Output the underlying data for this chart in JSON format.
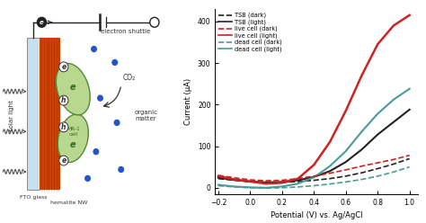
{
  "fig_width": 4.74,
  "fig_height": 2.48,
  "dpi": 100,
  "right_plot": {
    "xlabel": "Potential (V) vs. Ag/AgCl",
    "ylabel": "Current (μA)",
    "xlim": [
      -0.22,
      1.05
    ],
    "ylim": [
      -15,
      430
    ],
    "yticks": [
      0,
      100,
      200,
      300,
      400
    ],
    "xticks": [
      -0.2,
      0.0,
      0.2,
      0.4,
      0.6,
      0.8,
      1.0
    ],
    "legend_entries": [
      {
        "label": "TSB (dark)",
        "color": "#222222",
        "linestyle": "--"
      },
      {
        "label": "TSB (light)",
        "color": "#222222",
        "linestyle": "-"
      },
      {
        "label": "live cell (dark)",
        "color": "#cc2222",
        "linestyle": "--"
      },
      {
        "label": "live cell (light)",
        "color": "#cc2222",
        "linestyle": "-"
      },
      {
        "label": "dead cell (dark)",
        "color": "#4a9a9a",
        "linestyle": "--"
      },
      {
        "label": "dead cell (light)",
        "color": "#4a9a9a",
        "linestyle": "-"
      }
    ],
    "curves": {
      "tsb_dark": {
        "x": [
          -0.2,
          -0.1,
          0.0,
          0.1,
          0.2,
          0.3,
          0.4,
          0.5,
          0.6,
          0.7,
          0.8,
          0.9,
          1.0
        ],
        "y": [
          22,
          18,
          15,
          13,
          13,
          15,
          18,
          22,
          28,
          36,
          46,
          57,
          70
        ],
        "color": "#222222",
        "linestyle": "--",
        "linewidth": 1.2
      },
      "tsb_light": {
        "x": [
          -0.2,
          -0.1,
          0.0,
          0.1,
          0.2,
          0.3,
          0.4,
          0.5,
          0.6,
          0.7,
          0.8,
          0.9,
          1.0
        ],
        "y": [
          24,
          19,
          15,
          13,
          14,
          18,
          26,
          40,
          62,
          92,
          128,
          158,
          188
        ],
        "color": "#222222",
        "linestyle": "-",
        "linewidth": 1.5
      },
      "live_dark": {
        "x": [
          -0.2,
          -0.1,
          0.0,
          0.1,
          0.2,
          0.3,
          0.4,
          0.5,
          0.6,
          0.7,
          0.8,
          0.9,
          1.0
        ],
        "y": [
          30,
          24,
          19,
          17,
          18,
          22,
          28,
          35,
          43,
          52,
          60,
          68,
          78
        ],
        "color": "#cc2222",
        "linestyle": "--",
        "linewidth": 1.2
      },
      "live_light": {
        "x": [
          -0.2,
          -0.1,
          0.0,
          0.1,
          0.2,
          0.3,
          0.4,
          0.5,
          0.6,
          0.7,
          0.8,
          0.9,
          1.0
        ],
        "y": [
          28,
          20,
          15,
          10,
          12,
          22,
          55,
          110,
          185,
          270,
          345,
          390,
          415
        ],
        "color": "#cc2222",
        "linestyle": "-",
        "linewidth": 1.8
      },
      "dead_dark": {
        "x": [
          -0.2,
          -0.1,
          0.0,
          0.1,
          0.2,
          0.3,
          0.4,
          0.5,
          0.6,
          0.7,
          0.8,
          0.9,
          1.0
        ],
        "y": [
          5,
          2,
          0,
          -1,
          0,
          2,
          5,
          9,
          14,
          20,
          28,
          38,
          50
        ],
        "color": "#4a9a9a",
        "linestyle": "--",
        "linewidth": 1.2
      },
      "dead_light": {
        "x": [
          -0.2,
          -0.1,
          0.0,
          0.1,
          0.2,
          0.3,
          0.4,
          0.5,
          0.6,
          0.7,
          0.8,
          0.9,
          1.0
        ],
        "y": [
          7,
          3,
          1,
          0,
          3,
          10,
          25,
          52,
          88,
          135,
          178,
          212,
          238
        ],
        "color": "#4a9a9a",
        "linestyle": "-",
        "linewidth": 1.5
      }
    }
  },
  "left_plot": {
    "fto_color": "#c8dff0",
    "hematite_color": "#cc4400",
    "cell_color": "#b8d890",
    "cell_edge_color": "#558833",
    "solar_light_label": "solar light",
    "fto_label": "FTO glass",
    "hematite_label": "hematite NW",
    "electron_shuttle_label": "electron shuttle",
    "co2_label": "CO₂",
    "organic_matter_label": "organic\nmatter",
    "mr1_label": "MR-1\ncell"
  }
}
